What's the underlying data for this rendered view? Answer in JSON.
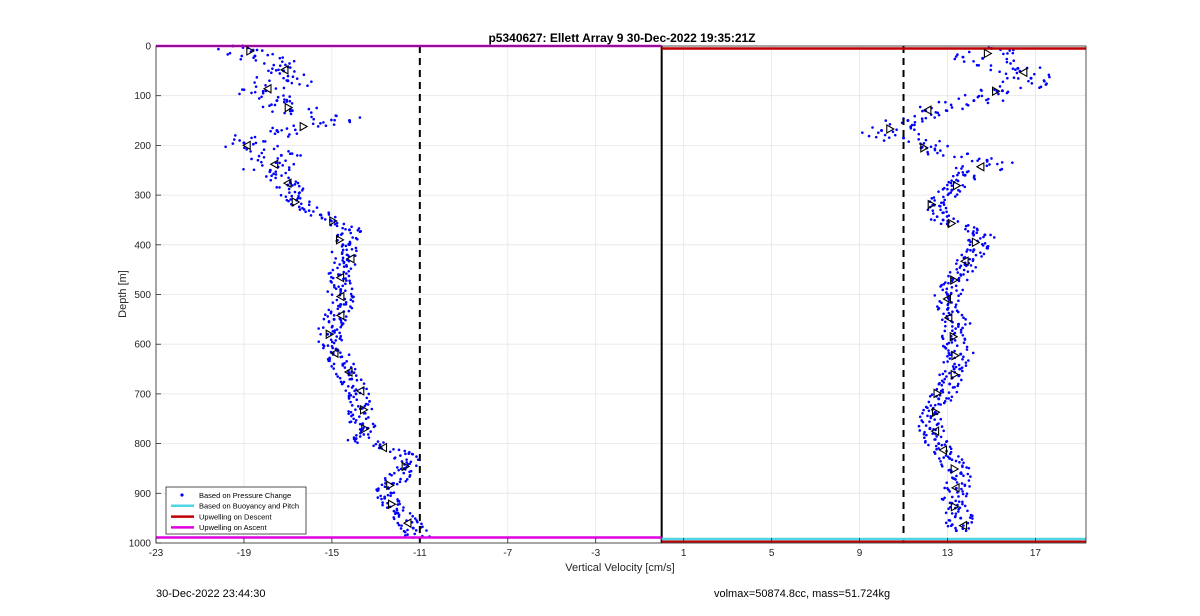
{
  "chart_data": {
    "type": "scatter",
    "title": "p5340627: Ellett Array 9 30-Dec-2022 19:35:21Z",
    "xlabel": "Vertical Velocity [cm/s]",
    "ylabel": "Depth [m]",
    "xlim": [
      -23,
      19.3
    ],
    "ylim": [
      1000,
      0
    ],
    "y_reversed": true,
    "grid": true,
    "x_ticks": [
      -23,
      -19,
      -15,
      -11,
      -7,
      -3,
      1,
      5,
      9,
      13,
      17
    ],
    "x_tick_labels": [
      "-23",
      "-19",
      "-15",
      "-11",
      "-7",
      "-3",
      "1",
      "5",
      "9",
      "13",
      "17"
    ],
    "y_ticks": [
      0,
      100,
      200,
      300,
      400,
      500,
      600,
      700,
      800,
      900,
      1000
    ],
    "y_tick_labels": [
      "0",
      "100",
      "200",
      "300",
      "400",
      "500",
      "600",
      "700",
      "800",
      "900",
      "1000"
    ],
    "legend_location": "bottom-left",
    "legend": [
      {
        "label": "Based on Pressure Change",
        "color": "#0000ff",
        "style": "dots"
      },
      {
        "label": "Based on Buoyancy and Pitch",
        "color": "#4fd6e6",
        "style": "line"
      },
      {
        "label": "Upwelling on Descent",
        "color": "#c00000",
        "style": "line"
      },
      {
        "label": "Upwelling on Ascent",
        "color": "#e000e0",
        "style": "line"
      }
    ],
    "reference_lines": {
      "dashed_x": [
        -11,
        11
      ],
      "solid_x": [
        0
      ]
    },
    "colors": {
      "pressure": "#0000ff",
      "buoyancy": "#4fd6e6",
      "descent": "#c00000",
      "ascent": "#e000e0",
      "markers": "#000000"
    },
    "series": [
      {
        "name": "Based on Pressure Change",
        "profile": "ascent (negative velocities)",
        "depth": [
          0,
          20,
          50,
          70,
          90,
          110,
          130,
          150,
          170,
          195,
          220,
          250,
          280,
          310,
          340,
          370,
          400,
          430,
          460,
          490,
          520,
          550,
          580,
          610,
          640,
          670,
          700,
          730,
          760,
          790,
          820,
          850,
          880,
          910,
          940,
          970,
          990
        ],
        "velocity": [
          -19.5,
          -18.5,
          -17.2,
          -17.0,
          -18.0,
          -17.5,
          -16.8,
          -14.2,
          -17.5,
          -19.0,
          -17.3,
          -17.8,
          -17.0,
          -16.6,
          -15.5,
          -14.2,
          -14.5,
          -14.3,
          -14.7,
          -14.6,
          -14.6,
          -14.9,
          -15.2,
          -14.8,
          -14.5,
          -14.1,
          -13.9,
          -13.7,
          -13.6,
          -13.9,
          -11.5,
          -11.7,
          -12.2,
          -12.6,
          -12.0,
          -11.3,
          -11.0
        ]
      },
      {
        "name": "Based on Pressure Change",
        "profile": "descent (positive velocities)",
        "depth": [
          5,
          25,
          45,
          65,
          90,
          110,
          130,
          150,
          170,
          185,
          205,
          230,
          260,
          290,
          320,
          350,
          380,
          410,
          440,
          470,
          500,
          530,
          560,
          590,
          620,
          650,
          680,
          710,
          740,
          770,
          800,
          830,
          860,
          890,
          920,
          950,
          975
        ],
        "velocity": [
          15.0,
          14.6,
          16.2,
          16.8,
          15.5,
          14.2,
          12.0,
          11.2,
          10.0,
          11.0,
          11.8,
          14.8,
          13.8,
          13.2,
          12.4,
          12.8,
          14.7,
          14.2,
          13.8,
          13.5,
          13.0,
          13.0,
          13.5,
          13.2,
          13.6,
          13.3,
          13.1,
          12.6,
          12.4,
          12.2,
          12.6,
          13.1,
          13.6,
          13.4,
          13.2,
          13.6,
          13.4
        ]
      }
    ],
    "ascent_line_depth": 0,
    "descent_line_depth": 5,
    "ascent_bottom_depth": 989,
    "buoyancy_bottom_depth": 992,
    "descent_bottom_depth": 997
  },
  "footer": {
    "left": "30-Dec-2022 23:44:30",
    "right": "volmax=50874.8cc, mass=51.724kg"
  }
}
